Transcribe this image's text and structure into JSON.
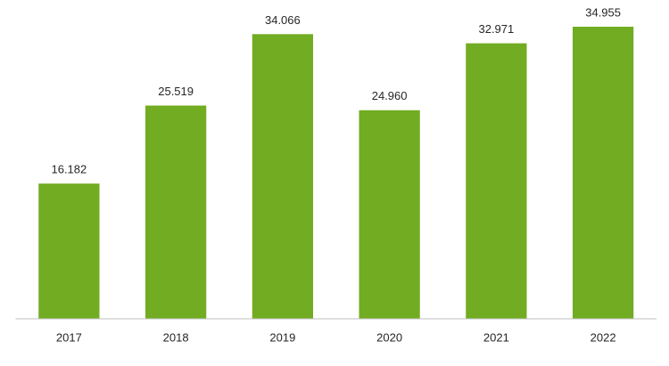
{
  "chart_data": {
    "type": "bar",
    "categories": [
      "2017",
      "2018",
      "2019",
      "2020",
      "2021",
      "2022"
    ],
    "values": [
      16.182,
      25.519,
      34.066,
      24.96,
      32.971,
      34.955
    ],
    "value_labels": [
      "16.182",
      "25.519",
      "34.066",
      "24.960",
      "32.971",
      "34.955"
    ],
    "color": "#72ac22"
  }
}
